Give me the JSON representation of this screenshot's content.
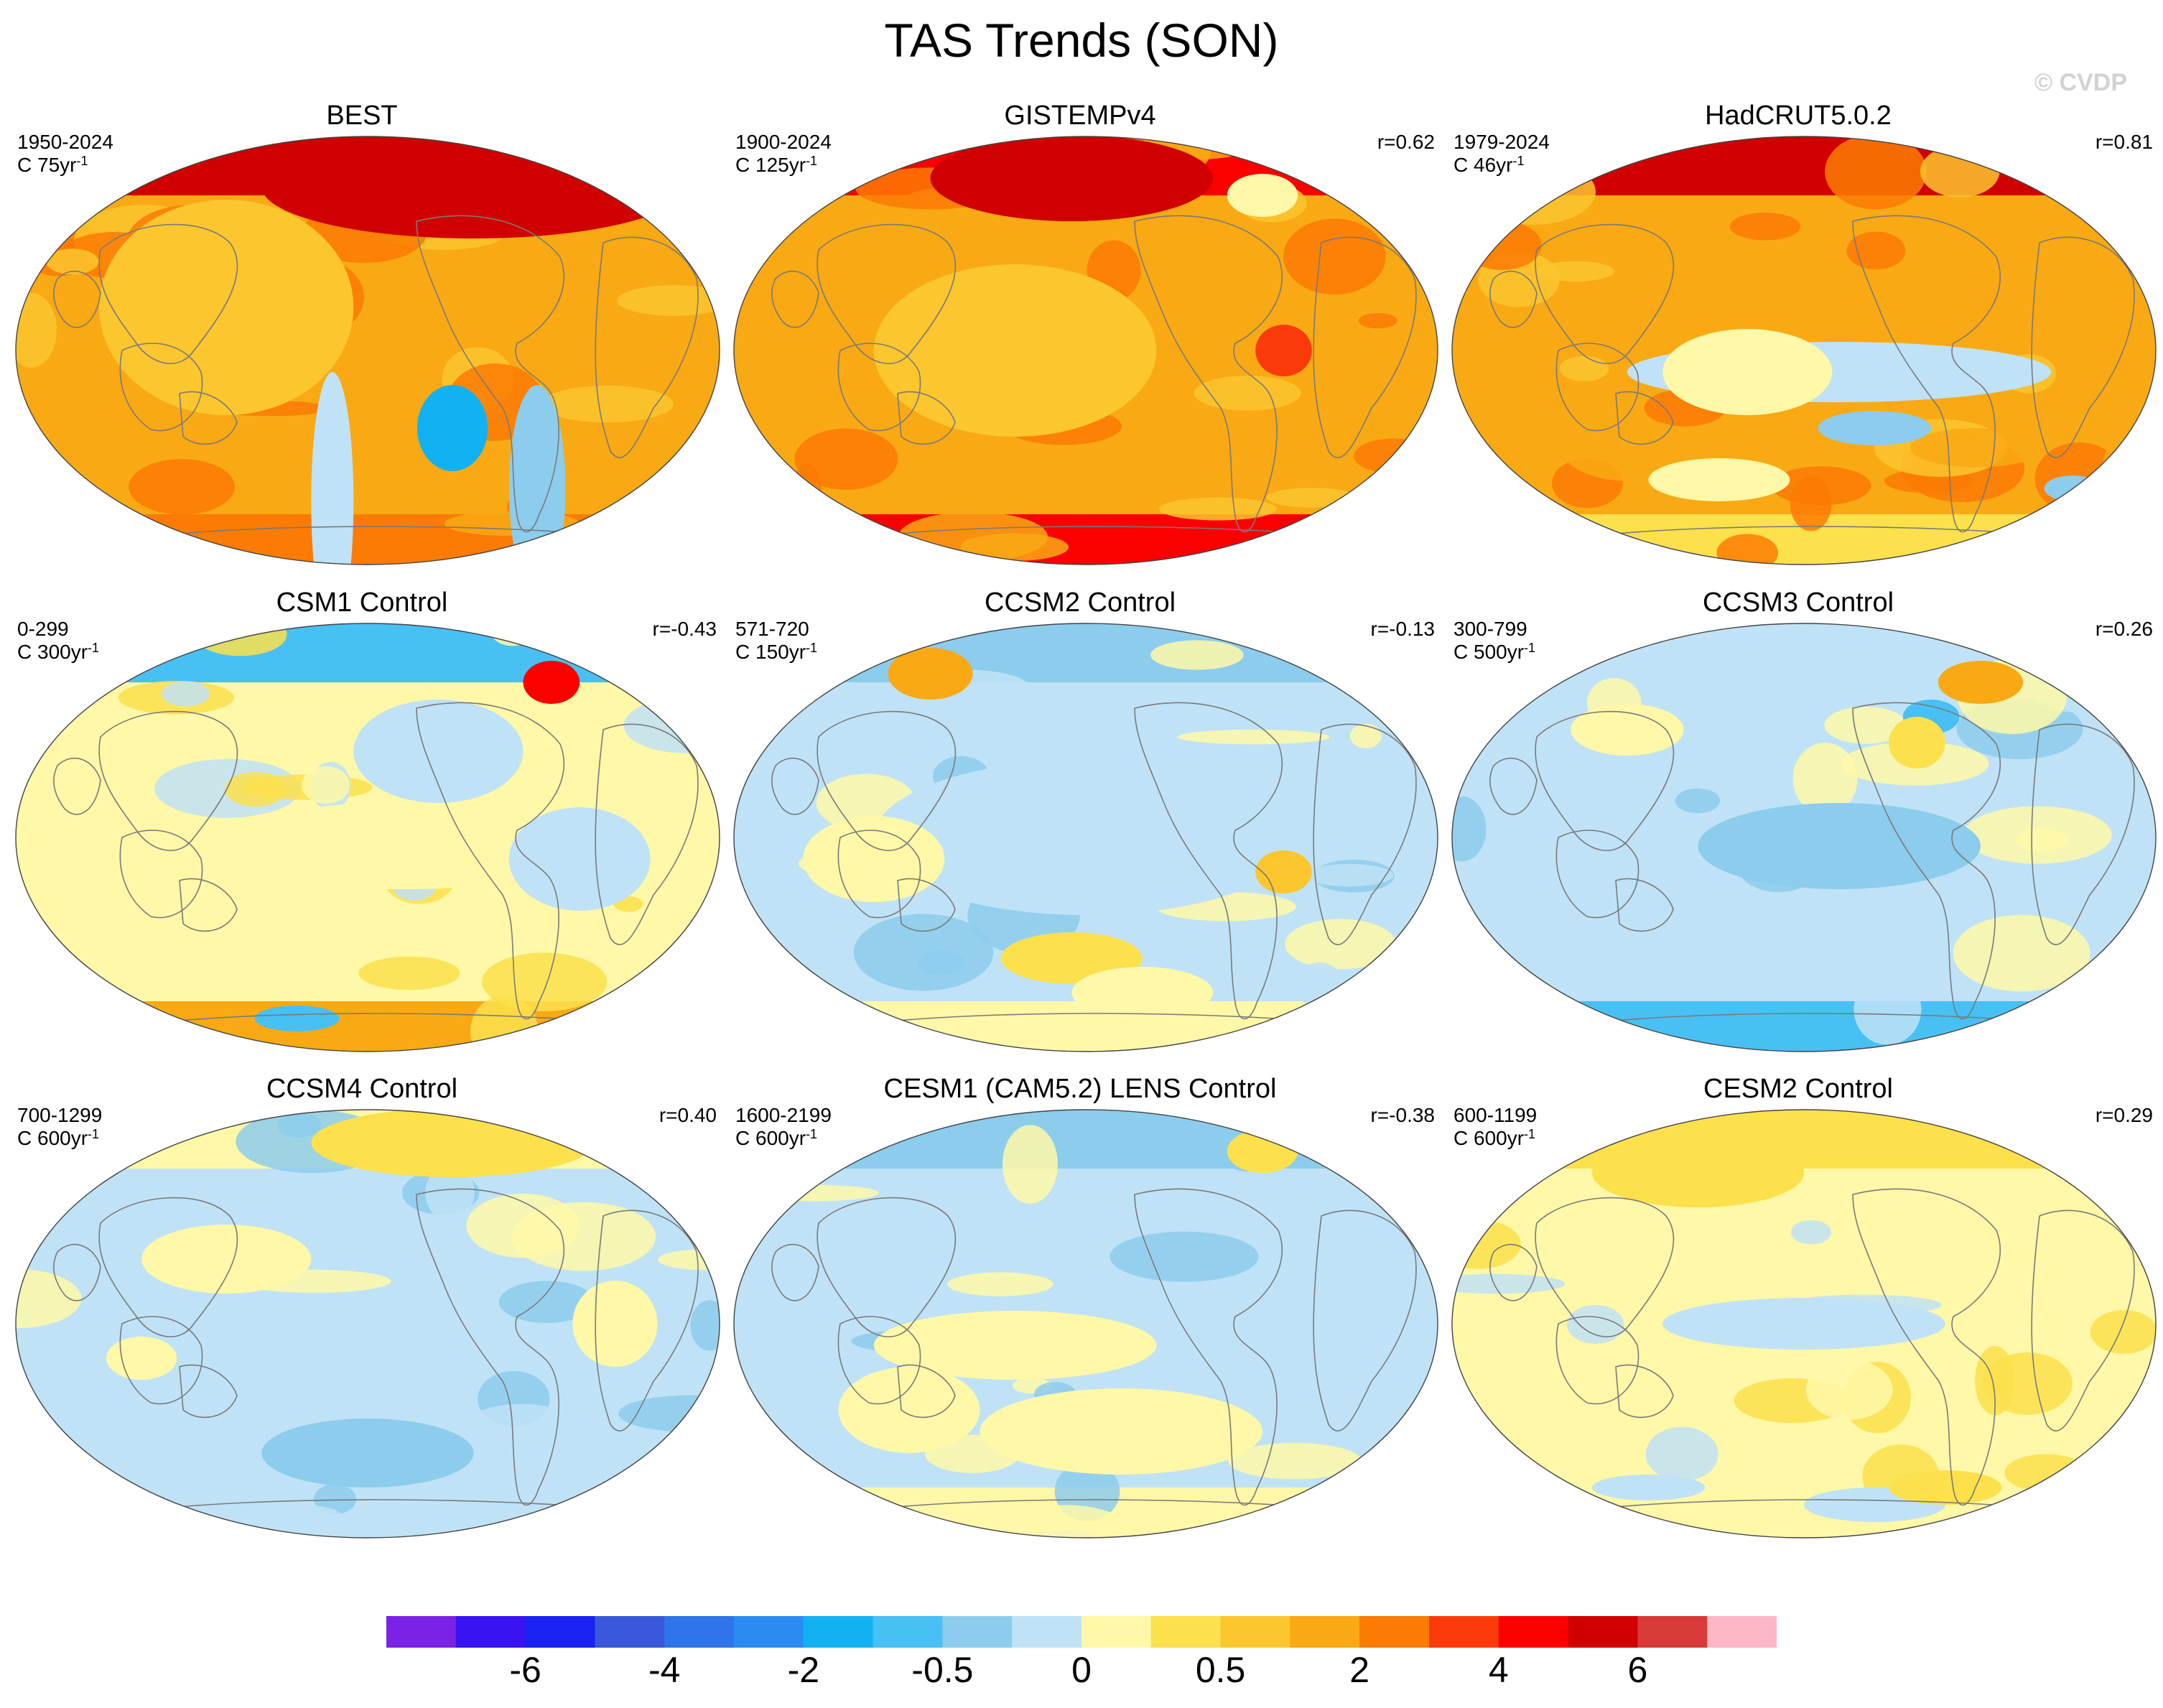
{
  "figure": {
    "title": "TAS Trends (SON)",
    "watermark": "© CVDP"
  },
  "palette": {
    "colors": [
      "#7a22e6",
      "#3a14f0",
      "#1a22f2",
      "#3a58da",
      "#2f74e8",
      "#2a8cf0",
      "#12b2f2",
      "#48c0f4",
      "#8cccec",
      "#bfe2f6",
      "#fef8a8",
      "#fce04c",
      "#fbc62e",
      "#f9a914",
      "#fb7b04",
      "#fb3a0a",
      "#fb0000",
      "#d10000",
      "#d83a3a",
      "#fbb8c4"
    ],
    "legend_labels": [
      "-6",
      "-4",
      "-2",
      "-0.5",
      "0",
      "0.5",
      "2",
      "4",
      "6"
    ],
    "coast_color": "#7a7a7a"
  },
  "panels": [
    {
      "name": "BEST",
      "years": "1950-2024",
      "rate": "C 75yr",
      "rate_exp": "-1",
      "corr": "",
      "field": {
        "base": 13,
        "north": 17,
        "south": 14,
        "blobs": [
          [
            0.62,
            0.68,
            0.05,
            0.1,
            6
          ],
          [
            0.74,
            0.82,
            0.04,
            0.24,
            8
          ],
          [
            0.45,
            0.85,
            0.03,
            0.3,
            9
          ],
          [
            0.65,
            0.12,
            0.3,
            0.12,
            17
          ],
          [
            0.3,
            0.4,
            0.18,
            0.25,
            12
          ]
        ]
      }
    },
    {
      "name": "GISTEMPv4",
      "years": "1900-2024",
      "rate": "C 125yr",
      "rate_exp": "-1",
      "corr": "r=0.62",
      "field": {
        "base": 13,
        "north": 16,
        "south": 16,
        "blobs": [
          [
            0.48,
            0.1,
            0.2,
            0.1,
            17
          ],
          [
            0.75,
            0.14,
            0.05,
            0.05,
            10
          ],
          [
            0.78,
            0.5,
            0.04,
            0.06,
            15
          ],
          [
            0.4,
            0.5,
            0.2,
            0.2,
            12
          ]
        ]
      }
    },
    {
      "name": "HadCRUT5.0.2",
      "years": "1979-2024",
      "rate": "C 46yr",
      "rate_exp": "-1",
      "corr": "r=0.81",
      "field": {
        "base": 13,
        "north": 17,
        "south": 11,
        "blobs": [
          [
            0.55,
            0.55,
            0.3,
            0.07,
            9
          ],
          [
            0.6,
            0.68,
            0.08,
            0.04,
            8
          ],
          [
            0.38,
            0.8,
            0.1,
            0.05,
            10
          ],
          [
            0.88,
            0.82,
            0.04,
            0.03,
            8
          ],
          [
            0.42,
            0.55,
            0.12,
            0.1,
            10
          ]
        ]
      }
    },
    {
      "name": "CSM1 Control",
      "years": "0-299",
      "rate": "C 300yr",
      "rate_exp": "-1",
      "corr": "r=-0.43",
      "field": {
        "base": 10,
        "north": 7,
        "south": 13,
        "blobs": [
          [
            0.76,
            0.14,
            0.04,
            0.05,
            16
          ],
          [
            0.4,
            0.92,
            0.06,
            0.03,
            7
          ],
          [
            0.55,
            0.52,
            0.3,
            0.1,
            10
          ],
          [
            0.6,
            0.3,
            0.12,
            0.12,
            9
          ],
          [
            0.8,
            0.55,
            0.1,
            0.12,
            9
          ]
        ]
      }
    },
    {
      "name": "CCSM2 Control",
      "years": "571-720",
      "rate": "C 150yr",
      "rate_exp": "-1",
      "corr": "r=-0.13",
      "field": {
        "base": 9,
        "north": 8,
        "south": 10,
        "blobs": [
          [
            0.28,
            0.12,
            0.06,
            0.06,
            13
          ],
          [
            0.5,
            0.5,
            0.3,
            0.18,
            9
          ],
          [
            0.2,
            0.55,
            0.1,
            0.1,
            10
          ],
          [
            0.48,
            0.78,
            0.1,
            0.06,
            11
          ],
          [
            0.78,
            0.58,
            0.04,
            0.05,
            12
          ],
          [
            0.58,
            0.86,
            0.1,
            0.06,
            10
          ]
        ]
      }
    },
    {
      "name": "CCSM3 Control",
      "years": "300-799",
      "rate": "C 500yr",
      "rate_exp": "-1",
      "corr": "r=0.26",
      "field": {
        "base": 9,
        "north": 9,
        "south": 7,
        "blobs": [
          [
            0.75,
            0.14,
            0.06,
            0.05,
            13
          ],
          [
            0.68,
            0.22,
            0.04,
            0.04,
            7
          ],
          [
            0.66,
            0.28,
            0.04,
            0.06,
            11
          ],
          [
            0.25,
            0.25,
            0.08,
            0.06,
            10
          ],
          [
            0.55,
            0.52,
            0.2,
            0.1,
            8
          ]
        ]
      }
    },
    {
      "name": "CCSM4 Control",
      "years": "700-1299",
      "rate": "C 600yr",
      "rate_exp": "-1",
      "corr": "r=0.40",
      "field": {
        "base": 9,
        "north": 10,
        "south": 9,
        "blobs": [
          [
            0.62,
            0.08,
            0.2,
            0.08,
            11
          ],
          [
            0.3,
            0.35,
            0.12,
            0.08,
            10
          ],
          [
            0.5,
            0.8,
            0.15,
            0.08,
            8
          ],
          [
            0.85,
            0.5,
            0.06,
            0.1,
            10
          ],
          [
            0.18,
            0.58,
            0.05,
            0.05,
            10
          ]
        ]
      }
    },
    {
      "name": "CESM1 (CAM5.2) LENS Control",
      "years": "1600-2199",
      "rate": "C 600yr",
      "rate_exp": "-1",
      "corr": "r=-0.38",
      "field": {
        "base": 9,
        "north": 8,
        "south": 10,
        "blobs": [
          [
            0.75,
            0.1,
            0.05,
            0.05,
            11
          ],
          [
            0.4,
            0.55,
            0.2,
            0.08,
            10
          ],
          [
            0.55,
            0.75,
            0.2,
            0.1,
            10
          ],
          [
            0.25,
            0.7,
            0.1,
            0.1,
            10
          ]
        ]
      }
    },
    {
      "name": "CESM2 Control",
      "years": "600-1199",
      "rate": "C 600yr",
      "rate_exp": "-1",
      "corr": "r=0.29",
      "field": {
        "base": 10,
        "north": 11,
        "south": 10,
        "blobs": [
          [
            0.35,
            0.15,
            0.15,
            0.08,
            11
          ],
          [
            0.5,
            0.5,
            0.2,
            0.06,
            9
          ],
          [
            0.6,
            0.92,
            0.1,
            0.04,
            9
          ],
          [
            0.7,
            0.88,
            0.08,
            0.04,
            11
          ],
          [
            0.28,
            0.88,
            0.08,
            0.03,
            9
          ]
        ]
      }
    }
  ]
}
